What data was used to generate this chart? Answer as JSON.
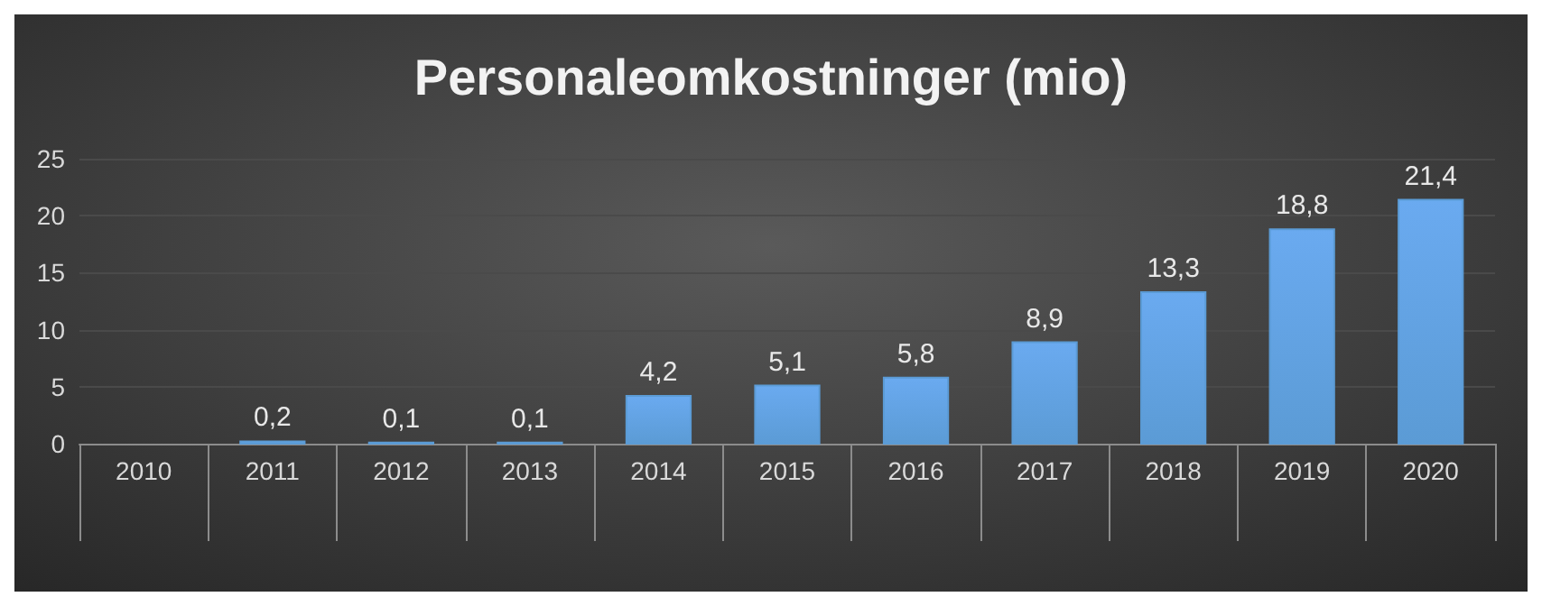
{
  "chart_data": {
    "type": "bar",
    "title": "Personaleomkostninger (mio)",
    "categories": [
      "2010",
      "2011",
      "2012",
      "2013",
      "2014",
      "2015",
      "2016",
      "2017",
      "2018",
      "2019",
      "2020"
    ],
    "values": [
      null,
      0.2,
      0.1,
      0.1,
      4.2,
      5.1,
      5.8,
      8.9,
      13.3,
      18.8,
      21.4
    ],
    "value_labels": [
      null,
      "0,2",
      "0,1",
      "0,1",
      "4,2",
      "5,1",
      "5,8",
      "8,9",
      "13,3",
      "18,8",
      "21,4"
    ],
    "color": "#5b9bd5",
    "ylim": [
      0,
      25
    ],
    "yticks": [
      0,
      5,
      10,
      15,
      20,
      25
    ],
    "grid": true
  }
}
